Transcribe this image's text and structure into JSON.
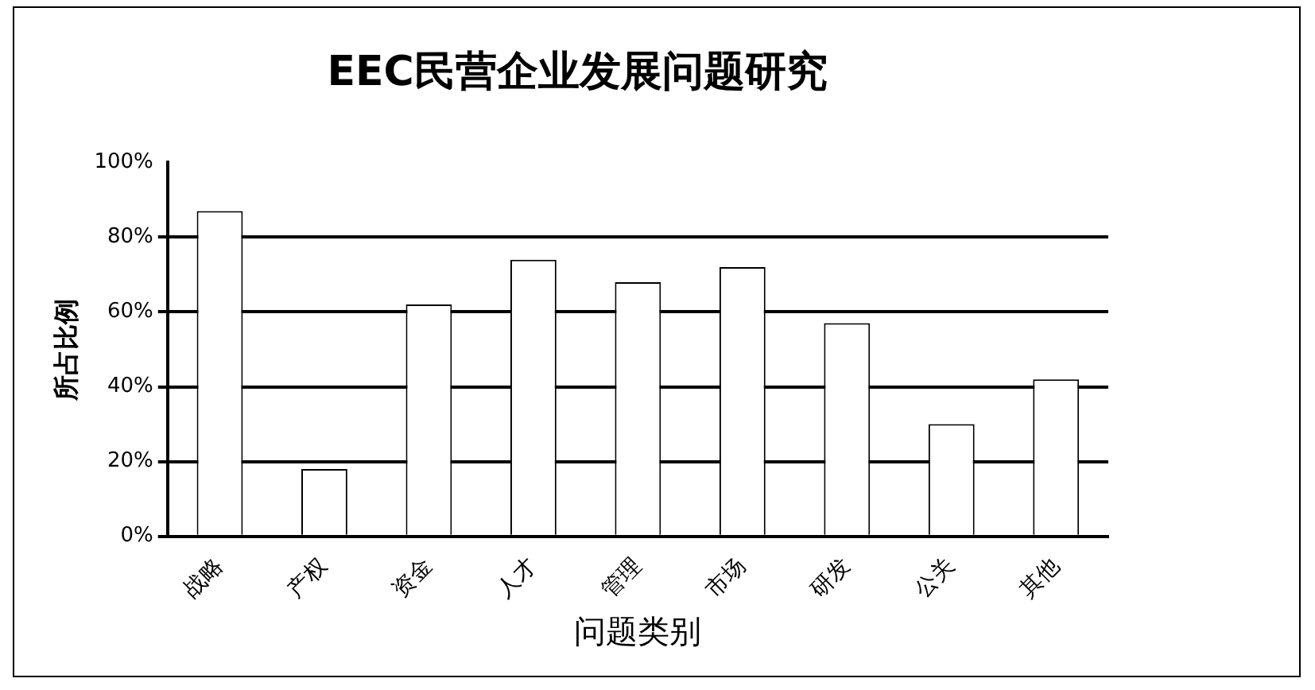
{
  "chart_data": {
    "type": "bar",
    "title": "EEC民营企业发展问题研究",
    "xlabel": "问题类别",
    "ylabel": "所占比例",
    "categories": [
      "战略",
      "产权",
      "资金",
      "人才",
      "管理",
      "市场",
      "研发",
      "公关",
      "其他"
    ],
    "values": [
      87,
      18,
      62,
      74,
      68,
      72,
      57,
      30,
      42
    ],
    "color": "#ffffff",
    "ylim": [
      0,
      100
    ],
    "yticks": [
      {
        "value": 0,
        "label": "0%"
      },
      {
        "value": 20,
        "label": "20%"
      },
      {
        "value": 40,
        "label": "40%"
      },
      {
        "value": 60,
        "label": "60%"
      },
      {
        "value": 80,
        "label": "80%"
      },
      {
        "value": 100,
        "label": "100%"
      }
    ],
    "grid": "y",
    "legend": false
  }
}
